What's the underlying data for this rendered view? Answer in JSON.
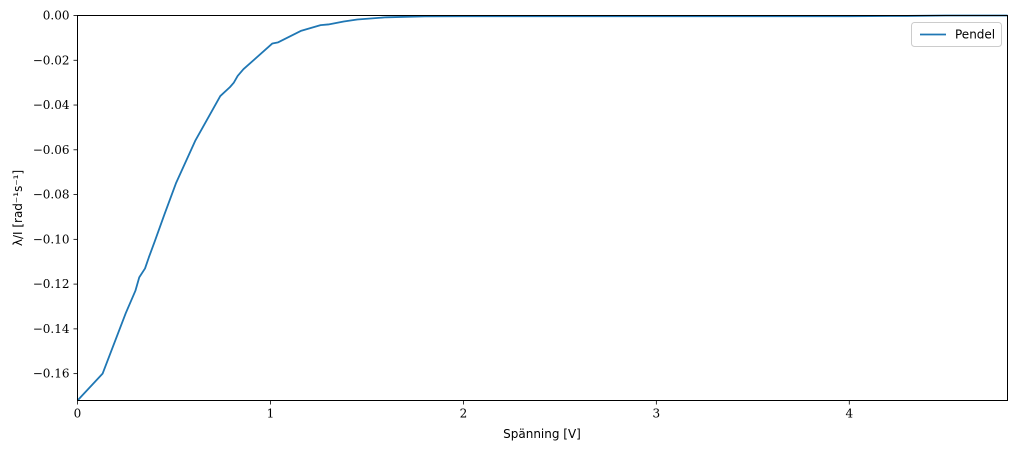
{
  "chart_data": {
    "type": "line",
    "title": "",
    "xlabel": "Spänning [V]",
    "ylabel": "λ/I [rad⁻¹s⁻¹]",
    "xlim": [
      0,
      4.82
    ],
    "ylim": [
      -0.172,
      0.0
    ],
    "xticks": [
      0,
      1,
      2,
      3,
      4
    ],
    "xtick_labels": [
      "0",
      "1",
      "2",
      "3",
      "4"
    ],
    "yticks": [
      0.0,
      -0.02,
      -0.04,
      -0.06,
      -0.08,
      -0.1,
      -0.12,
      -0.14,
      -0.16
    ],
    "ytick_labels": [
      "0.00",
      "−0.02",
      "−0.04",
      "−0.06",
      "−0.08",
      "−0.10",
      "−0.12",
      "−0.14",
      "−0.16"
    ],
    "grid": false,
    "legend_position": "top-right",
    "series": [
      {
        "name": "Pendel",
        "color": "#1f77b4",
        "x": [
          0,
          0.13,
          0.25,
          0.3,
          0.32,
          0.35,
          0.37,
          0.4,
          0.45,
          0.51,
          0.61,
          0.74,
          0.79,
          0.81,
          0.83,
          0.86,
          1.01,
          1.04,
          1.16,
          1.26,
          1.3,
          1.38,
          1.45,
          1.6,
          1.8,
          2.0,
          2.5,
          3.0,
          3.5,
          4.0,
          4.3,
          4.5,
          4.82
        ],
        "y": [
          -0.172,
          -0.16,
          -0.133,
          -0.123,
          -0.117,
          -0.113,
          -0.108,
          -0.101,
          -0.089,
          -0.075,
          -0.056,
          -0.036,
          -0.032,
          -0.03,
          -0.027,
          -0.024,
          -0.0125,
          -0.012,
          -0.0068,
          -0.0043,
          -0.004,
          -0.0027,
          -0.0018,
          -0.0008,
          -0.0004,
          -0.0003,
          -0.0003,
          -0.0003,
          -0.0003,
          -0.0003,
          -0.0002,
          0.0,
          0.0
        ]
      }
    ]
  }
}
